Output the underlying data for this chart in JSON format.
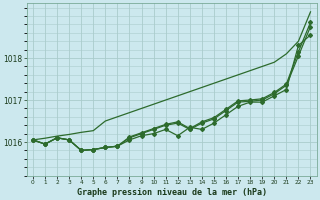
{
  "title": "Graphe pression niveau de la mer (hPa)",
  "background_color": "#cce8ee",
  "grid_color": "#aacccc",
  "line_color": "#2d6b2d",
  "x_labels": [
    "0",
    "1",
    "2",
    "3",
    "4",
    "5",
    "6",
    "7",
    "8",
    "9",
    "10",
    "11",
    "12",
    "13",
    "14",
    "15",
    "16",
    "17",
    "18",
    "19",
    "20",
    "21",
    "22",
    "23"
  ],
  "x_values": [
    0,
    1,
    2,
    3,
    4,
    5,
    6,
    7,
    8,
    9,
    10,
    11,
    12,
    13,
    14,
    15,
    16,
    17,
    18,
    19,
    20,
    21,
    22,
    23
  ],
  "ylim": [
    1015.2,
    1019.3
  ],
  "yticks": [
    1016,
    1017,
    1018
  ],
  "line_straight": [
    1016.05,
    1016.09,
    1016.14,
    1016.18,
    1016.23,
    1016.27,
    1016.5,
    1016.6,
    1016.7,
    1016.8,
    1016.9,
    1017.0,
    1017.1,
    1017.2,
    1017.3,
    1017.4,
    1017.5,
    1017.6,
    1017.7,
    1017.8,
    1017.9,
    1018.1,
    1018.4,
    1019.1
  ],
  "line_wiggly1": [
    1016.05,
    1015.95,
    1016.1,
    1016.05,
    1015.8,
    1015.82,
    1015.87,
    1015.9,
    1016.05,
    1016.15,
    1016.2,
    1016.3,
    1016.15,
    1016.35,
    1016.3,
    1016.45,
    1016.65,
    1016.85,
    1016.95,
    1016.95,
    1017.1,
    1017.25,
    1018.3,
    1018.55
  ],
  "line_wiggly2": [
    1016.05,
    1015.95,
    1016.1,
    1016.05,
    1015.8,
    1015.82,
    1015.87,
    1015.9,
    1016.1,
    1016.2,
    1016.3,
    1016.4,
    1016.45,
    1016.3,
    1016.45,
    1016.55,
    1016.75,
    1016.95,
    1016.97,
    1017.0,
    1017.15,
    1017.35,
    1018.05,
    1018.75
  ],
  "line_wiggly3": [
    1016.05,
    1015.95,
    1016.1,
    1016.05,
    1015.8,
    1015.82,
    1015.87,
    1015.9,
    1016.12,
    1016.22,
    1016.32,
    1016.42,
    1016.48,
    1016.32,
    1016.48,
    1016.58,
    1016.78,
    1016.98,
    1017.0,
    1017.03,
    1017.18,
    1017.38,
    1018.15,
    1018.85
  ]
}
